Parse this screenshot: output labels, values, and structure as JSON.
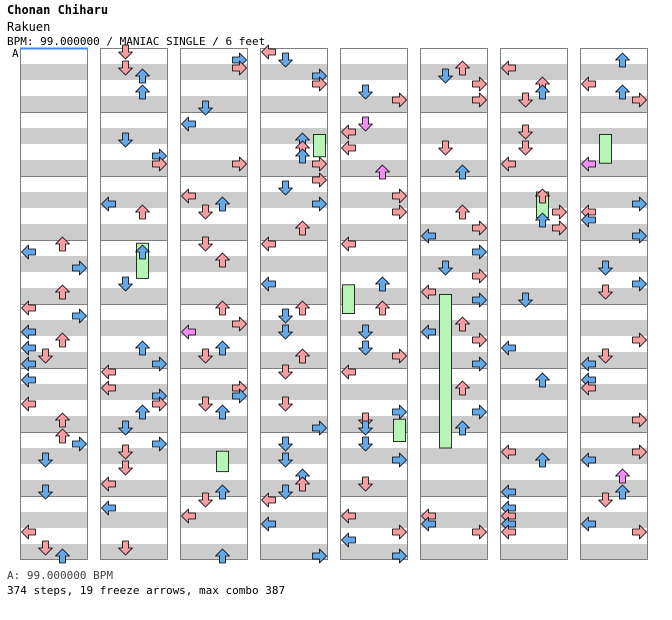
{
  "header": {
    "artist": "Chonan Chiharu",
    "title": "Rakuen",
    "info": "BPM: 99.000000 / MANIAC SINGLE / 6 feet",
    "marker": "A"
  },
  "footer": {
    "bpm_line": "A: 99.000000 BPM",
    "stats_line": "374 steps, 19 freeze arrows, max combo 387"
  },
  "chart_data": {
    "type": "step-chart",
    "columns": 8,
    "measures_per_column": 8,
    "lanes": [
      "left",
      "down",
      "up",
      "right"
    ],
    "colors": {
      "quarter": "#f59da2",
      "eighth": "#64a8ea",
      "sixteenth": "#f08ff0",
      "freeze": "#b7f5b7",
      "stripe_dark": "#cccccc",
      "stripe_light": "#ffffff",
      "border": "#7f7f7f",
      "start_line": "#4488ff"
    },
    "freezes": [
      {
        "column": 1,
        "lane": 3,
        "start_measure": 3.05,
        "end_measure": 3.6
      },
      {
        "column": 2,
        "lane": 3,
        "start_measure": 6.3,
        "end_measure": 6.62
      },
      {
        "column": 3,
        "lane": 4,
        "start_measure": 1.35,
        "end_measure": 1.7
      },
      {
        "column": 4,
        "lane": 1,
        "start_measure": 3.7,
        "end_measure": 4.15
      },
      {
        "column": 4,
        "lane": 4,
        "start_measure": 5.8,
        "end_measure": 6.15
      },
      {
        "column": 5,
        "lane": 2,
        "start_measure": 3.85,
        "end_measure": 6.25
      },
      {
        "column": 6,
        "lane": 3,
        "start_measure": 2.25,
        "end_measure": 2.65
      },
      {
        "column": 7,
        "lane": 2,
        "start_measure": 1.35,
        "end_measure": 1.8
      }
    ]
  }
}
